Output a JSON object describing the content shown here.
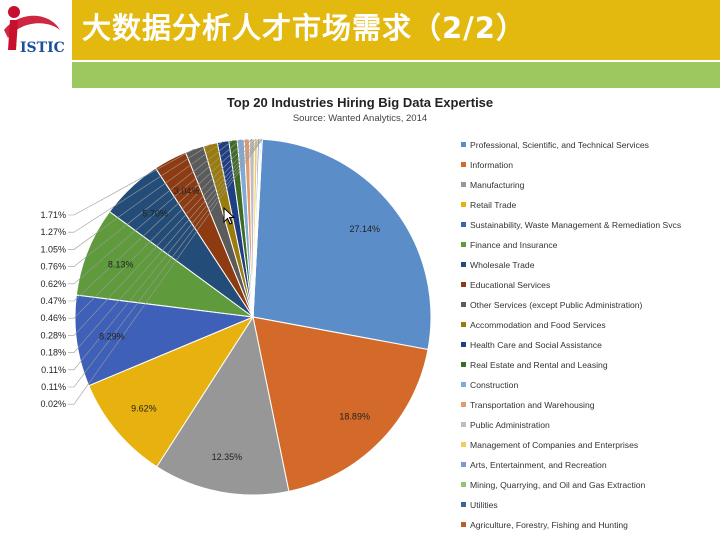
{
  "header": {
    "title": "大数据分析人才市场需求（2/2）",
    "logo_text": "ISTIC",
    "colors": {
      "bar": "#e4b90f",
      "accent_bar": "#9dc860",
      "logo_red": "#c8102e",
      "logo_blue": "#1d4fa0"
    }
  },
  "cursor": {
    "icon": "mouse-pointer-icon"
  },
  "chart_data": {
    "type": "pie",
    "title": "Top 20 Industries Hiring Big Data Expertise",
    "subtitle": "Source: Wanted Analytics, 2014",
    "legend_position": "right",
    "slices": [
      {
        "name": "Professional, Scientific, and Technical Services",
        "value": 27.14,
        "label": "27.14%",
        "color": "#5b8ec9"
      },
      {
        "name": "Information",
        "value": 18.89,
        "label": "18.89%",
        "color": "#d36a2a"
      },
      {
        "name": "Manufacturing",
        "value": 12.35,
        "label": "12.35%",
        "color": "#979797"
      },
      {
        "name": "Retail Trade",
        "value": 9.62,
        "label": "9.62%",
        "color": "#e7b20f"
      },
      {
        "name": "Sustainability, Waste Management & Remediation Svcs",
        "value": 8.29,
        "label": "8.29%",
        "color": "#3f60b8"
      },
      {
        "name": "Finance and Insurance",
        "value": 8.13,
        "label": "8.13%",
        "color": "#5f9b3c"
      },
      {
        "name": "Wholesale Trade",
        "value": 5.7,
        "label": "5.70%",
        "color": "#234d78"
      },
      {
        "name": "Educational Services",
        "value": 3.04,
        "label": "3.04%",
        "color": "#8f3b12"
      },
      {
        "name": "Other Services (except Public Administration)",
        "value": 1.71,
        "label": "1.71%",
        "color": "#5b5b5b"
      },
      {
        "name": "Accommodation and Food Services",
        "value": 1.27,
        "label": "1.27%",
        "color": "#9a7b0c"
      },
      {
        "name": "Health Care and Social Assistance",
        "value": 1.05,
        "label": "1.05%",
        "color": "#1f3f84"
      },
      {
        "name": "Real Estate and Rental and Leasing",
        "value": 0.76,
        "label": "0.76%",
        "color": "#3f6b25"
      },
      {
        "name": "Construction",
        "value": 0.62,
        "label": "0.62%",
        "color": "#7fa9d8"
      },
      {
        "name": "Transportation and Warehousing",
        "value": 0.47,
        "label": "0.47%",
        "color": "#e39b6c"
      },
      {
        "name": "Public Administration",
        "value": 0.46,
        "label": "0.46%",
        "color": "#bdbdbd"
      },
      {
        "name": "Management of Companies and Enterprises",
        "value": 0.28,
        "label": "0.28%",
        "color": "#f2cd5d"
      },
      {
        "name": "Arts, Entertainment, and Recreation",
        "value": 0.18,
        "label": "0.18%",
        "color": "#7d98d4"
      },
      {
        "name": "Mining, Quarrying, and Oil and Gas Extraction",
        "value": 0.11,
        "label": "0.11%",
        "color": "#93c472"
      },
      {
        "name": "Utilities",
        "value": 0.11,
        "label": "0.11%",
        "color": "#3a6795"
      },
      {
        "name": "Agriculture, Forestry, Fishing and Hunting",
        "value": 0.02,
        "label": "0.02%",
        "color": "#b5612a"
      }
    ]
  }
}
